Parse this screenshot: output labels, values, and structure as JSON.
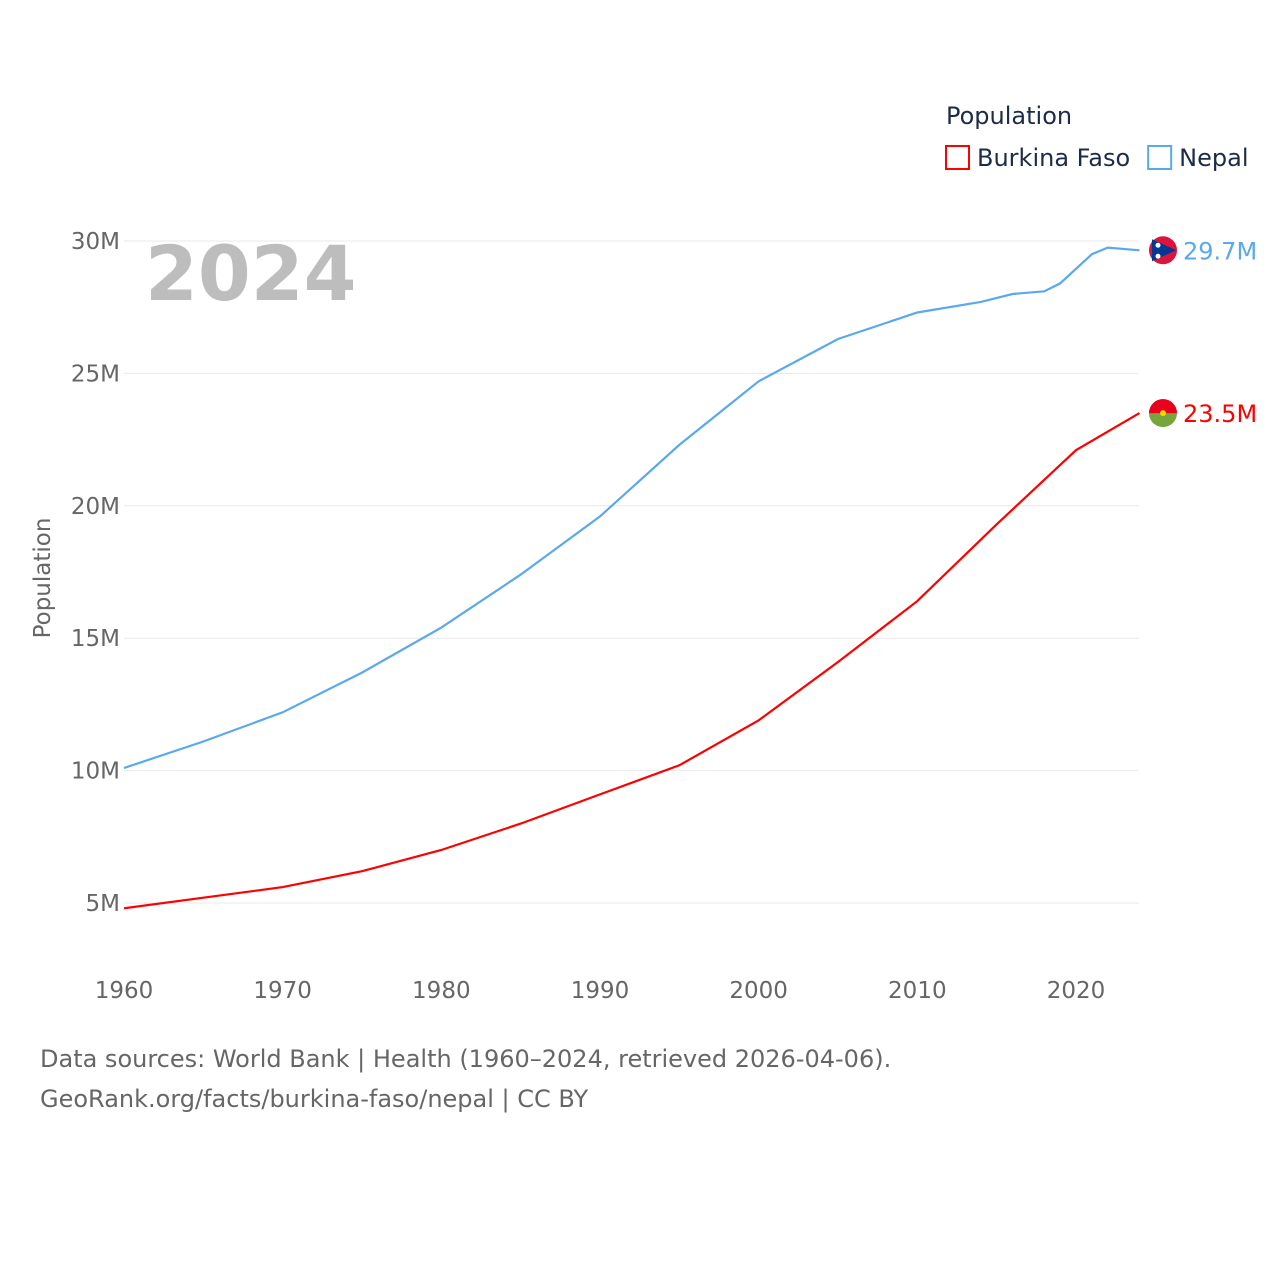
{
  "chart_data": {
    "type": "line",
    "title": "Population",
    "ylabel": "Population",
    "xlabel": "",
    "year_label": "2024",
    "xlim": [
      1960,
      2024
    ],
    "ylim": [
      3,
      31
    ],
    "x_ticks": [
      1960,
      1970,
      1980,
      1990,
      2000,
      2010,
      2020
    ],
    "x_tick_labels": [
      "1960",
      "1970",
      "1980",
      "1990",
      "2000",
      "2010",
      "2020"
    ],
    "y_ticks": [
      5,
      10,
      15,
      20,
      25,
      30
    ],
    "y_tick_labels": [
      "5M",
      "10M",
      "15M",
      "20M",
      "25M",
      "30M"
    ],
    "legend_title": "Population",
    "legend_position": "top-right",
    "series": [
      {
        "name": "Burkina Faso",
        "color": "#ff0000",
        "end_label": "23.5M",
        "x": [
          1960,
          1965,
          1970,
          1975,
          1980,
          1985,
          1990,
          1995,
          2000,
          2005,
          2010,
          2015,
          2020,
          2024
        ],
        "values": [
          4.8,
          5.2,
          5.6,
          6.2,
          7.0,
          8.0,
          9.1,
          10.2,
          11.9,
          14.1,
          16.4,
          19.3,
          22.1,
          23.5
        ]
      },
      {
        "name": "Nepal",
        "color": "#5aa8ee",
        "end_label": "29.7M",
        "x": [
          1960,
          1965,
          1970,
          1975,
          1980,
          1985,
          1990,
          1995,
          2000,
          2005,
          2010,
          2014,
          2016,
          2018,
          2019,
          2021,
          2022,
          2024
        ],
        "values": [
          10.1,
          11.1,
          12.2,
          13.7,
          15.4,
          17.4,
          19.6,
          22.3,
          24.7,
          26.3,
          27.3,
          27.7,
          28.0,
          28.1,
          28.4,
          29.5,
          29.75,
          29.65
        ]
      }
    ]
  },
  "footer": {
    "line1": "Data sources: World Bank | Health (1960–2024, retrieved 2026-04-06).",
    "line2": "GeoRank.org/facts/burkina-faso/nepal | CC BY"
  }
}
